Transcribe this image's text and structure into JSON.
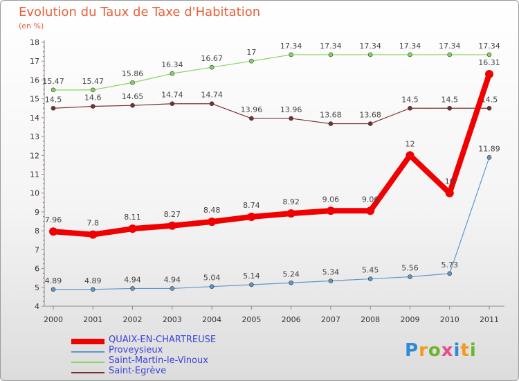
{
  "title": "Evolution du Taux de Taxe d'Habitation",
  "subtitle": "(en %)",
  "logo_text": "Proxiti",
  "chart_data": {
    "type": "line",
    "title": "Evolution du Taux de Taxe d'Habitation",
    "ylabel": "(en %)",
    "xlabel": "",
    "ylim": [
      4,
      18
    ],
    "y_ticks": [
      4,
      5,
      6,
      7,
      8,
      9,
      10,
      11,
      12,
      13,
      14,
      15,
      16,
      17,
      18
    ],
    "x": [
      "2000",
      "2001",
      "2002",
      "2003",
      "2004",
      "2005",
      "2006",
      "2007",
      "2008",
      "2009",
      "2010",
      "2011"
    ],
    "grid": false,
    "legend_position": "bottom-left",
    "series": [
      {
        "name": "QUAIX-EN-CHARTREUSE",
        "color": "#f00000",
        "values": [
          7.96,
          7.8,
          8.11,
          8.27,
          8.48,
          8.74,
          8.92,
          9.06,
          9.06,
          12,
          10,
          16.31
        ],
        "labels": [
          "7.96",
          "7.8",
          "8.11",
          "8.27",
          "8.48",
          "8.74",
          "8.92",
          "9.06",
          "9.06",
          "12",
          "10",
          "16.31"
        ]
      },
      {
        "name": "Proveysieux",
        "color": "#5f97c9",
        "values": [
          4.89,
          4.89,
          4.94,
          4.94,
          5.04,
          5.14,
          5.24,
          5.34,
          5.45,
          5.56,
          5.73,
          11.89
        ],
        "labels": [
          "4.89",
          "4.89",
          "4.94",
          "4.94",
          "5.04",
          "5.14",
          "5.24",
          "5.34",
          "5.45",
          "5.56",
          "5.73",
          "11.89"
        ]
      },
      {
        "name": "Saint-Martin-le-Vinoux",
        "color": "#88d45c",
        "values": [
          15.47,
          15.47,
          15.86,
          16.34,
          16.67,
          17,
          17.34,
          17.34,
          17.34,
          17.34,
          17.34,
          17.34
        ],
        "labels": [
          "15.47",
          "15.47",
          "15.86",
          "16.34",
          "16.67",
          "17",
          "17.34",
          "17.34",
          "17.34",
          "17.34",
          "17.34",
          "17.34"
        ]
      },
      {
        "name": "Saint-Egrève",
        "color": "#7a2f2f",
        "values": [
          14.5,
          14.6,
          14.65,
          14.74,
          14.74,
          13.96,
          13.96,
          13.68,
          13.68,
          14.5,
          14.5,
          14.5
        ],
        "labels": [
          "14.5",
          "14.6",
          "14.65",
          "14.74",
          "14.74",
          "13.96",
          "13.96",
          "13.68",
          "13.68",
          "14.5",
          "14.5",
          "14.5"
        ]
      }
    ]
  }
}
